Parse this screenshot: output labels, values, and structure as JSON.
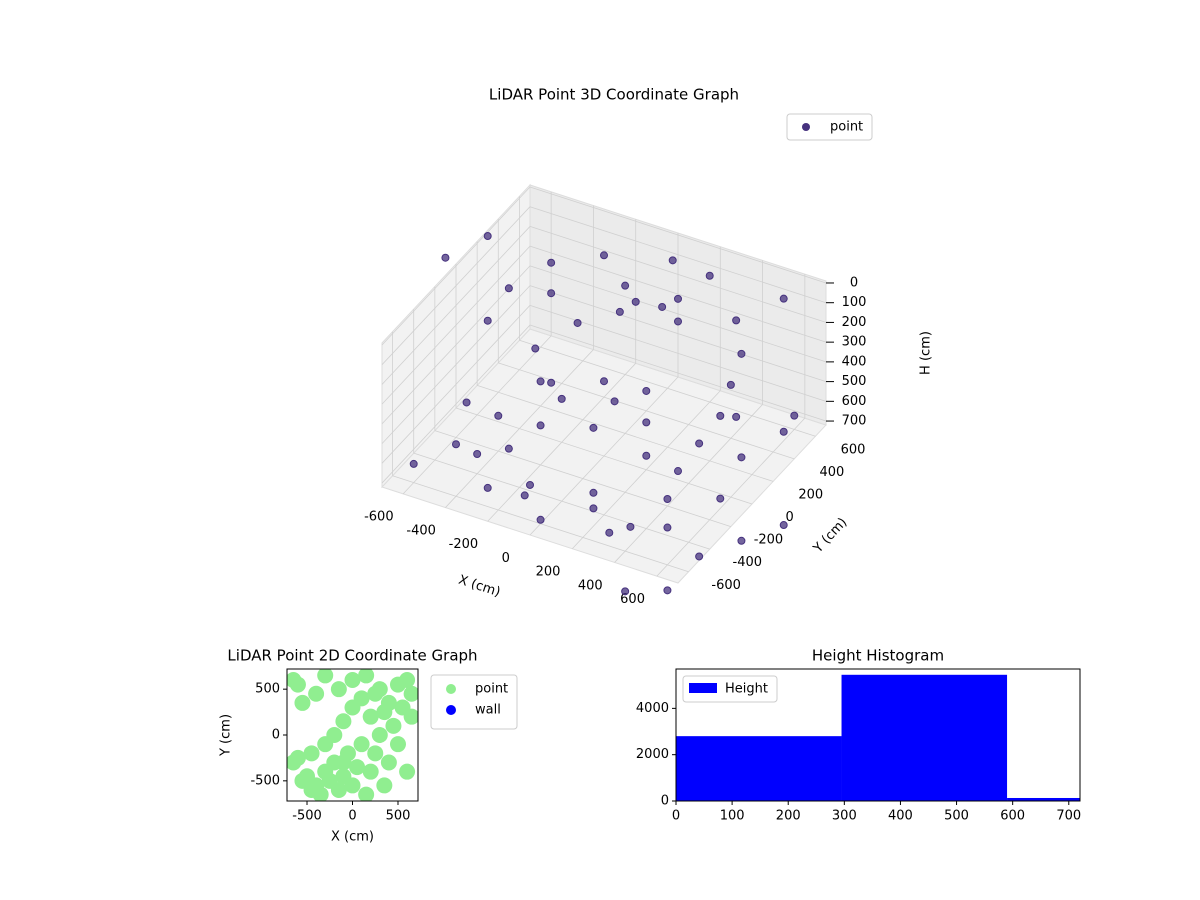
{
  "chart_data": [
    {
      "type": "scatter3d",
      "title": "LiDAR Point 3D Coordinate Graph",
      "xlabel": "X (cm)",
      "ylabel": "Y (cm)",
      "zlabel": "H (cm)",
      "xlim": [
        -700,
        700
      ],
      "ylim": [
        -700,
        700
      ],
      "zlim": [
        720,
        -10
      ],
      "xticks": [
        -600,
        -400,
        -200,
        0,
        200,
        400,
        600
      ],
      "yticks": [
        -600,
        -400,
        -200,
        0,
        200,
        400,
        600
      ],
      "zticks": [
        0,
        100,
        200,
        300,
        400,
        500,
        600,
        700
      ],
      "grid": true,
      "legend": "upper right",
      "series": [
        {
          "name": "point",
          "color": "#46327e",
          "x": [
            -550,
            -500,
            -450,
            -300,
            0,
            300,
            500,
            600,
            550,
            400,
            -600,
            -400,
            -100,
            200,
            450,
            -600,
            -500,
            -300,
            0,
            200,
            -600,
            -450,
            -100,
            0,
            100,
            200,
            -50,
            150,
            500,
            500,
            450,
            400,
            500,
            -200,
            0,
            200,
            100,
            -100,
            -300,
            300,
            -200,
            0,
            -350,
            100,
            350,
            -150,
            -300,
            -400,
            -800,
            -700,
            600,
            700,
            800,
            900,
            700,
            550,
            650,
            600,
            -650,
            300
          ],
          "y": [
            -300,
            0,
            300,
            -500,
            -600,
            -550,
            -400,
            -100,
            200,
            450,
            -100,
            -400,
            -550,
            -500,
            -300,
            300,
            500,
            600,
            650,
            600,
            100,
            400,
            400,
            300,
            350,
            300,
            250,
            400,
            200,
            100,
            0,
            -100,
            300,
            0,
            -100,
            0,
            200,
            200,
            100,
            -200,
            -200,
            100,
            -200,
            -300,
            -450,
            -400,
            350,
            150,
            100,
            300,
            500,
            -500,
            -300,
            -100,
            -800,
            -900,
            400,
            600,
            -500,
            650
          ],
          "z": [
            680,
            690,
            670,
            700,
            700,
            690,
            680,
            670,
            650,
            640,
            600,
            620,
            640,
            630,
            610,
            250,
            200,
            150,
            100,
            80,
            300,
            280,
            120,
            110,
            130,
            140,
            150,
            100,
            300,
            400,
            500,
            600,
            200,
            500,
            520,
            480,
            470,
            490,
            510,
            500,
            520,
            500,
            690,
            700,
            700,
            690,
            350,
            400,
            50,
            20,
            0,
            700,
            700,
            700,
            700,
            700,
            600,
            650,
            700,
            300
          ]
        }
      ]
    },
    {
      "type": "scatter",
      "title": "LiDAR Point 2D Coordinate Graph",
      "xlabel": "X (cm)",
      "ylabel": "Y (cm)",
      "xlim": [
        -720,
        720
      ],
      "ylim": [
        -720,
        720
      ],
      "xticks": [
        -500,
        0,
        500
      ],
      "yticks": [
        -500,
        0,
        500
      ],
      "legend": "outside right",
      "series": [
        {
          "name": "point",
          "color": "#90ee90",
          "x": [
            -650,
            -600,
            -550,
            -500,
            -450,
            -400,
            -350,
            -300,
            -250,
            -200,
            -150,
            -100,
            -50,
            0,
            50,
            100,
            150,
            200,
            250,
            300,
            350,
            400,
            450,
            500,
            550,
            600,
            650,
            -200,
            -100,
            0,
            100,
            200,
            300,
            400,
            500,
            600,
            650,
            -600,
            -550,
            -400,
            -300,
            -150,
            0,
            150,
            250,
            -650,
            -450,
            -300,
            -100,
            350
          ],
          "y": [
            -300,
            -250,
            -500,
            -450,
            -600,
            -550,
            -650,
            -400,
            -500,
            -300,
            -600,
            -450,
            -200,
            -550,
            -350,
            -100,
            -650,
            -400,
            -200,
            0,
            -550,
            -300,
            100,
            -100,
            300,
            -400,
            200,
            0,
            150,
            300,
            400,
            200,
            500,
            350,
            550,
            600,
            450,
            550,
            350,
            450,
            650,
            500,
            600,
            650,
            450,
            600,
            -200,
            -100,
            -300,
            250
          ]
        },
        {
          "name": "wall",
          "color": "#0000ff",
          "x": [],
          "y": []
        }
      ]
    },
    {
      "type": "histogram",
      "title": "Height Histogram",
      "xlim": [
        0,
        720
      ],
      "ylim": [
        0,
        5700
      ],
      "xticks": [
        0,
        100,
        200,
        300,
        400,
        500,
        600,
        700
      ],
      "yticks": [
        0,
        2000,
        4000
      ],
      "legend": "upper left",
      "bins": [
        0,
        295,
        590,
        885
      ],
      "series": [
        {
          "name": "Height",
          "color": "#0000ff",
          "values": [
            2800,
            5450,
            130
          ]
        }
      ]
    }
  ]
}
